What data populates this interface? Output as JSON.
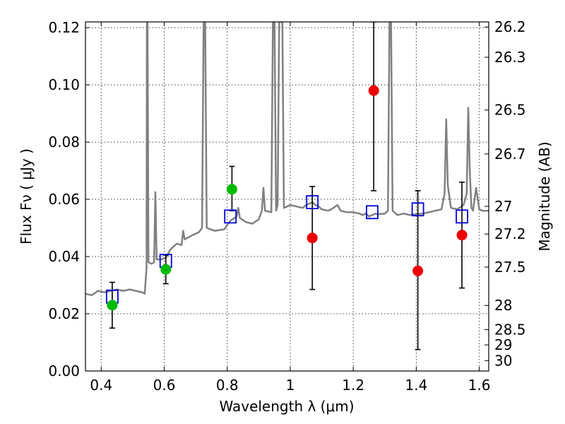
{
  "chart_data": {
    "type": "scatter",
    "xlabel": "Wavelength  λ (μm)",
    "ylabel": "Flux  Fν  ( μJy )",
    "ylabel_right": "Magnitude (AB)",
    "xlim": [
      0.35,
      1.63
    ],
    "ylim": [
      0.0,
      0.122
    ],
    "grid": true,
    "x_ticks": [
      {
        "value": 0.4,
        "label": "0.4"
      },
      {
        "value": 0.6,
        "label": "0.6"
      },
      {
        "value": 0.8,
        "label": "0.8"
      },
      {
        "value": 1.0,
        "label": "1"
      },
      {
        "value": 1.2,
        "label": "1.2"
      },
      {
        "value": 1.4,
        "label": "1.4"
      },
      {
        "value": 1.6,
        "label": "1.6"
      }
    ],
    "y_ticks": [
      {
        "value": 0.0,
        "label": "0.00"
      },
      {
        "value": 0.02,
        "label": "0.02"
      },
      {
        "value": 0.04,
        "label": "0.04"
      },
      {
        "value": 0.06,
        "label": "0.06"
      },
      {
        "value": 0.08,
        "label": "0.08"
      },
      {
        "value": 0.1,
        "label": "0.10"
      },
      {
        "value": 0.12,
        "label": "0.12"
      }
    ],
    "mag_ticks": [
      "26.2",
      "26.3",
      "26.5",
      "26.7",
      "27",
      "27.2",
      "27.5",
      "28",
      "28.5",
      "29",
      "30"
    ],
    "series": [
      {
        "kind": "line",
        "color": "#808080",
        "points": [
          [
            0.35,
            0.027
          ],
          [
            0.37,
            0.0265
          ],
          [
            0.39,
            0.028
          ],
          [
            0.41,
            0.0275
          ],
          [
            0.43,
            0.028
          ],
          [
            0.45,
            0.0285
          ],
          [
            0.47,
            0.028
          ],
          [
            0.49,
            0.0285
          ],
          [
            0.51,
            0.028
          ],
          [
            0.53,
            0.0275
          ],
          [
            0.538,
            0.027
          ],
          [
            0.544,
            0.036
          ],
          [
            0.545,
            0.122
          ],
          [
            0.547,
            0.122
          ],
          [
            0.55,
            0.038
          ],
          [
            0.56,
            0.0375
          ],
          [
            0.568,
            0.038
          ],
          [
            0.572,
            0.0625
          ],
          [
            0.576,
            0.039
          ],
          [
            0.59,
            0.039
          ],
          [
            0.605,
            0.0395
          ],
          [
            0.62,
            0.0425
          ],
          [
            0.64,
            0.0445
          ],
          [
            0.655,
            0.044
          ],
          [
            0.66,
            0.049
          ],
          [
            0.665,
            0.046
          ],
          [
            0.69,
            0.0475
          ],
          [
            0.71,
            0.0485
          ],
          [
            0.72,
            0.05
          ],
          [
            0.725,
            0.122
          ],
          [
            0.73,
            0.122
          ],
          [
            0.735,
            0.05
          ],
          [
            0.76,
            0.049
          ],
          [
            0.79,
            0.0495
          ],
          [
            0.81,
            0.0525
          ],
          [
            0.83,
            0.054
          ],
          [
            0.835,
            0.057
          ],
          [
            0.84,
            0.0535
          ],
          [
            0.86,
            0.052
          ],
          [
            0.88,
            0.0515
          ],
          [
            0.9,
            0.053
          ],
          [
            0.91,
            0.056
          ],
          [
            0.915,
            0.064
          ],
          [
            0.92,
            0.056
          ],
          [
            0.94,
            0.0555
          ],
          [
            0.945,
            0.122
          ],
          [
            0.95,
            0.122
          ],
          [
            0.955,
            0.056
          ],
          [
            0.96,
            0.058
          ],
          [
            0.965,
            0.122
          ],
          [
            0.968,
            0.122
          ],
          [
            0.972,
            0.122
          ],
          [
            0.975,
            0.122
          ],
          [
            0.98,
            0.057
          ],
          [
            0.99,
            0.0575
          ],
          [
            1.0,
            0.058
          ],
          [
            1.02,
            0.0575
          ],
          [
            1.04,
            0.057
          ],
          [
            1.05,
            0.058
          ],
          [
            1.07,
            0.059
          ],
          [
            1.08,
            0.058
          ],
          [
            1.09,
            0.0575
          ],
          [
            1.1,
            0.0565
          ],
          [
            1.12,
            0.056
          ],
          [
            1.13,
            0.0565
          ],
          [
            1.15,
            0.058
          ],
          [
            1.16,
            0.056
          ],
          [
            1.18,
            0.0555
          ],
          [
            1.2,
            0.0555
          ],
          [
            1.22,
            0.055
          ],
          [
            1.23,
            0.0545
          ],
          [
            1.24,
            0.055
          ],
          [
            1.25,
            0.054
          ],
          [
            1.27,
            0.055
          ],
          [
            1.28,
            0.0548
          ],
          [
            1.3,
            0.055
          ],
          [
            1.31,
            0.056
          ],
          [
            1.315,
            0.122
          ],
          [
            1.32,
            0.122
          ],
          [
            1.325,
            0.056
          ],
          [
            1.34,
            0.0545
          ],
          [
            1.36,
            0.055
          ],
          [
            1.38,
            0.0545
          ],
          [
            1.4,
            0.0548
          ],
          [
            1.42,
            0.055
          ],
          [
            1.44,
            0.0555
          ],
          [
            1.46,
            0.056
          ],
          [
            1.48,
            0.0565
          ],
          [
            1.49,
            0.062
          ],
          [
            1.495,
            0.088
          ],
          [
            1.5,
            0.065
          ],
          [
            1.51,
            0.057
          ],
          [
            1.53,
            0.0565
          ],
          [
            1.55,
            0.058
          ],
          [
            1.56,
            0.062
          ],
          [
            1.565,
            0.092
          ],
          [
            1.57,
            0.07
          ],
          [
            1.575,
            0.057
          ],
          [
            1.58,
            0.056
          ],
          [
            1.59,
            0.064
          ],
          [
            1.6,
            0.0565
          ],
          [
            1.61,
            0.056
          ],
          [
            1.63,
            0.056
          ]
        ]
      },
      {
        "kind": "model_photometry",
        "marker": "open-square",
        "color": "#0000dd",
        "x": [
          0.435,
          0.605,
          0.81,
          1.07,
          1.26,
          1.405,
          1.545
        ],
        "y": [
          0.026,
          0.0385,
          0.054,
          0.059,
          0.0555,
          0.0565,
          0.054
        ]
      },
      {
        "kind": "observed",
        "marker": "filled-circle",
        "color": "#00bb00",
        "x": [
          0.435,
          0.605,
          0.815
        ],
        "y": [
          0.023,
          0.0355,
          0.0635
        ],
        "yerr_low": [
          0.015,
          0.0305,
          0.056
        ],
        "yerr_high": [
          0.031,
          0.0405,
          0.0715
        ]
      },
      {
        "kind": "observed",
        "marker": "filled-circle",
        "color": "#ee0000",
        "x": [
          1.07,
          1.265,
          1.405,
          1.545
        ],
        "y": [
          0.0465,
          0.098,
          0.035,
          0.0475
        ],
        "yerr_low": [
          0.0285,
          0.063,
          0.0075,
          0.029
        ],
        "yerr_high": [
          0.0645,
          0.122,
          0.063,
          0.066
        ]
      }
    ]
  }
}
